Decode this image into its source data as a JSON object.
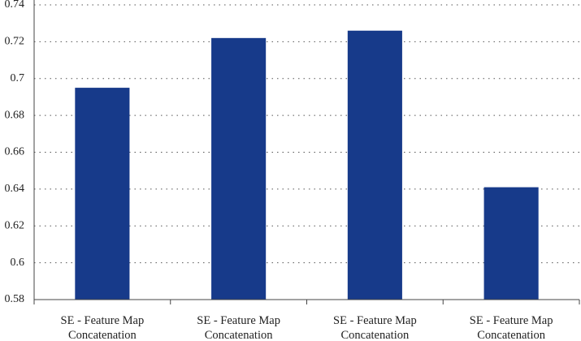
{
  "chart_data": {
    "type": "bar",
    "categories": [
      "SE - Feature Map Concatenation",
      "SE - Feature Map Concatenation",
      "SE - Feature Map Concatenation",
      "SE - Feature Map Concatenation"
    ],
    "values": [
      0.695,
      0.722,
      0.726,
      0.641
    ],
    "color": "#173a8a",
    "ylim": [
      0.58,
      0.74
    ],
    "yticks": [
      0.58,
      0.6,
      0.62,
      0.64,
      0.66,
      0.68,
      0.7,
      0.72,
      0.74
    ],
    "grid": true
  }
}
